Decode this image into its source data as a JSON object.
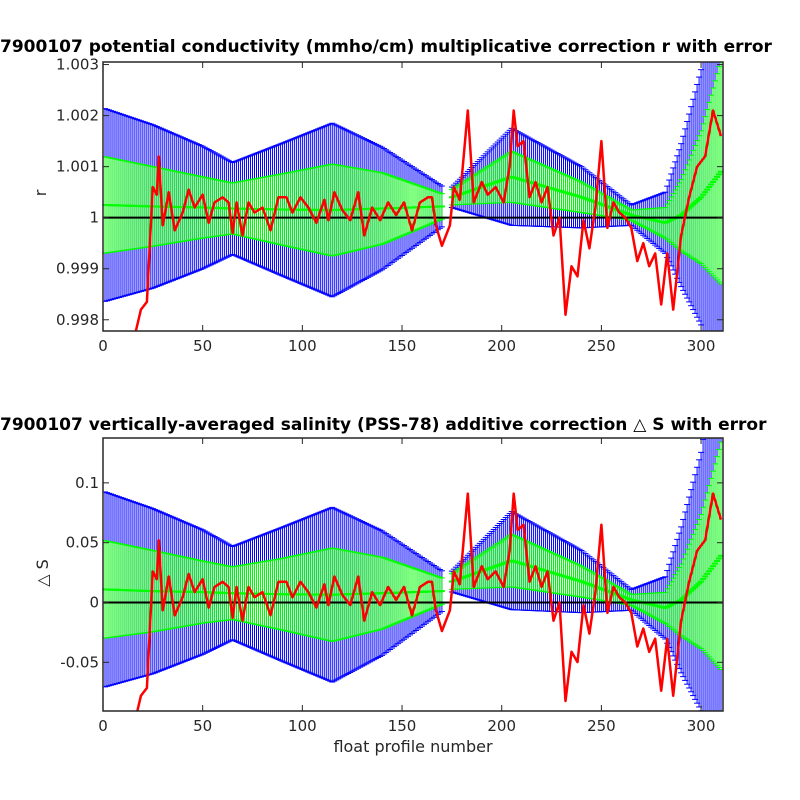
{
  "chart_data": [
    {
      "type": "line",
      "title": "7900107 potential conductivity (mmho/cm) multiplicative correction r with error",
      "xlabel": "",
      "ylabel": "r",
      "xlim": [
        0,
        311
      ],
      "ylim": [
        0.99778,
        1.00305
      ],
      "xticks": [
        0,
        50,
        100,
        150,
        200,
        250,
        300
      ],
      "yticks": [
        0.998,
        0.999,
        1,
        1.001,
        1.002,
        1.003
      ],
      "ytick_labels": [
        "0.998",
        "0.999",
        "1",
        "1.001",
        "1.002",
        "1.003"
      ],
      "reference_line": 1,
      "grid": false,
      "colors": {
        "measured": "#ff0000",
        "inner_band": "#00ff00",
        "outer_band": "#0000ff",
        "reference": "#000000"
      },
      "series": [
        {
          "role": "fit",
          "x": [
            0,
            25,
            50,
            65,
            90,
            115,
            140,
            170,
            175,
            205,
            240,
            265,
            282,
            290,
            300,
            310
          ],
          "y": [
            1.00025,
            1.00022,
            1.0002,
            1.00018,
            1.00016,
            1.00015,
            1.00018,
            1.00022,
            1.0004,
            1.0008,
            1.0004,
            1.00005,
            0.9999,
            1.00005,
            1.0004,
            1.0009
          ],
          "err_inner": [
            0.00095,
            0.00078,
            0.0006,
            0.0005,
            0.0007,
            0.0009,
            0.0007,
            0.00025,
            0.00015,
            0.0005,
            0.0003,
            0.0001,
            0.0003,
            0.0007,
            0.0013,
            0.0022
          ],
          "err_outer": [
            0.0019,
            0.0016,
            0.0012,
            0.0009,
            0.0013,
            0.0017,
            0.0012,
            0.0004,
            0.0002,
            0.00095,
            0.0006,
            0.0002,
            0.0006,
            0.0014,
            0.0025,
            0.0045
          ]
        },
        {
          "role": "measured",
          "x": [
            16,
            19,
            22,
            25,
            27,
            28,
            30,
            33,
            36,
            40,
            43,
            46,
            50,
            53,
            56,
            60,
            63,
            65,
            67,
            70,
            73,
            76,
            80,
            84,
            88,
            92,
            95,
            99,
            103,
            107,
            111,
            113,
            116,
            120,
            124,
            128,
            131,
            135,
            139,
            143,
            147,
            151,
            155,
            159,
            163,
            165,
            167,
            170,
            174,
            176,
            179,
            183,
            186,
            190,
            193,
            197,
            201,
            204,
            206,
            208,
            211,
            214,
            217,
            220,
            223,
            226,
            229,
            232,
            235,
            238,
            241,
            244,
            247,
            250,
            253,
            256,
            259,
            262,
            265,
            268,
            271,
            274,
            277,
            280,
            283,
            286,
            290,
            294,
            298,
            302,
            306,
            310
          ],
          "y": [
            0.9977,
            0.9982,
            0.99835,
            1.0006,
            1.00045,
            1.0012,
            0.99985,
            1.0005,
            0.99975,
            1.0001,
            1.00055,
            1.0002,
            1.00045,
            0.9999,
            1.0003,
            1.0004,
            1.0003,
            0.9997,
            1.0003,
            0.99965,
            1.0003,
            1.0001,
            1.0002,
            0.99975,
            1.0004,
            1.0004,
            1.0001,
            1.0004,
            1.0002,
            0.9999,
            1.00035,
            0.99995,
            1.0005,
            1.00015,
            0.99995,
            1.0005,
            0.99965,
            1.0002,
            0.99995,
            1.0003,
            1.00005,
            1.0003,
            0.99975,
            1.0003,
            1.0004,
            1.0004,
            0.99985,
            0.99945,
            0.99985,
            1.0006,
            1.00035,
            1.0021,
            1.0003,
            1.0007,
            1.00045,
            1.0006,
            1.0003,
            1.001,
            1.0021,
            1.0014,
            1.0015,
            1.0004,
            1.0007,
            1.0003,
            1.0006,
            0.99965,
            1.0,
            0.9981,
            0.99905,
            0.99885,
            0.99995,
            0.9994,
            1.0002,
            1.0015,
            0.9998,
            1.0003,
            1.0001,
            1.0,
            0.9998,
            0.99915,
            0.9995,
            0.99905,
            0.9993,
            0.9983,
            0.9993,
            0.9982,
            0.99965,
            1.0004,
            1.001,
            1.0012,
            1.0021,
            1.0016
          ]
        }
      ]
    },
    {
      "type": "line",
      "title": "7900107 vertically-averaged salinity (PSS-78) additive correction △ S with error",
      "xlabel": "float profile number",
      "ylabel": "△ S",
      "xlim": [
        0,
        311
      ],
      "ylim": [
        -0.0907,
        0.1375
      ],
      "xticks": [
        0,
        50,
        100,
        150,
        200,
        250,
        300
      ],
      "yticks": [
        -0.05,
        0,
        0.05,
        0.1
      ],
      "ytick_labels": [
        "-0.05",
        "0",
        "0.05",
        "0.1"
      ],
      "reference_line": 0,
      "grid": false,
      "colors": {
        "measured": "#ff0000",
        "inner_band": "#00ff00",
        "outer_band": "#0000ff",
        "reference": "#000000"
      },
      "series": [
        {
          "role": "fit",
          "x": [
            0,
            25,
            50,
            65,
            90,
            115,
            140,
            170,
            175,
            205,
            240,
            265,
            282,
            290,
            300,
            310
          ],
          "y": [
            0.011,
            0.0095,
            0.0087,
            0.0078,
            0.0069,
            0.0065,
            0.0078,
            0.0095,
            0.0175,
            0.035,
            0.0175,
            0.0022,
            -0.0045,
            0.0022,
            0.0175,
            0.039
          ],
          "err_inner": [
            0.041,
            0.034,
            0.026,
            0.022,
            0.03,
            0.039,
            0.03,
            0.011,
            0.0065,
            0.022,
            0.013,
            0.0045,
            0.013,
            0.03,
            0.056,
            0.095
          ],
          "err_outer": [
            0.082,
            0.069,
            0.052,
            0.039,
            0.056,
            0.073,
            0.052,
            0.017,
            0.0087,
            0.041,
            0.026,
            0.0087,
            0.026,
            0.061,
            0.108,
            0.195
          ]
        },
        {
          "role": "measured",
          "x": [
            16,
            19,
            22,
            25,
            27,
            28,
            30,
            33,
            36,
            40,
            43,
            46,
            50,
            53,
            56,
            60,
            63,
            65,
            67,
            70,
            73,
            76,
            80,
            84,
            88,
            92,
            95,
            99,
            103,
            107,
            111,
            113,
            116,
            120,
            124,
            128,
            131,
            135,
            139,
            143,
            147,
            151,
            155,
            159,
            163,
            165,
            167,
            170,
            174,
            176,
            179,
            183,
            186,
            190,
            193,
            197,
            201,
            204,
            206,
            208,
            211,
            214,
            217,
            220,
            223,
            226,
            229,
            232,
            235,
            238,
            241,
            244,
            247,
            250,
            253,
            256,
            259,
            262,
            265,
            268,
            271,
            274,
            277,
            280,
            283,
            286,
            290,
            294,
            298,
            302,
            306,
            310
          ],
          "y": [
            -0.0995,
            -0.078,
            -0.0715,
            0.026,
            0.0195,
            0.052,
            -0.0065,
            0.0217,
            -0.0108,
            0.0043,
            0.0238,
            0.0087,
            0.0195,
            -0.0043,
            0.013,
            0.0173,
            0.013,
            -0.013,
            0.013,
            -0.0152,
            0.013,
            0.0043,
            0.0087,
            -0.0108,
            0.0173,
            0.0173,
            0.0043,
            0.0173,
            0.0087,
            -0.0043,
            0.0152,
            -0.0022,
            0.0217,
            0.0065,
            -0.0022,
            0.0217,
            -0.0152,
            0.0087,
            -0.0022,
            0.013,
            0.0022,
            0.013,
            -0.0108,
            0.013,
            0.0173,
            0.0173,
            -0.0065,
            -0.0238,
            -0.0065,
            0.026,
            0.0152,
            0.091,
            0.013,
            0.0303,
            0.0195,
            0.026,
            0.013,
            0.0433,
            0.091,
            0.0607,
            0.065,
            0.0173,
            0.0303,
            0.013,
            0.026,
            -0.0152,
            0.0,
            -0.0823,
            -0.0412,
            -0.0498,
            -0.0022,
            -0.026,
            0.0087,
            0.065,
            -0.0087,
            0.013,
            0.0043,
            0.0,
            -0.0087,
            -0.0368,
            -0.0217,
            -0.0412,
            -0.0303,
            -0.0737,
            -0.0303,
            -0.078,
            -0.0152,
            0.0173,
            0.0433,
            0.052,
            0.091,
            0.0693
          ]
        }
      ]
    }
  ]
}
